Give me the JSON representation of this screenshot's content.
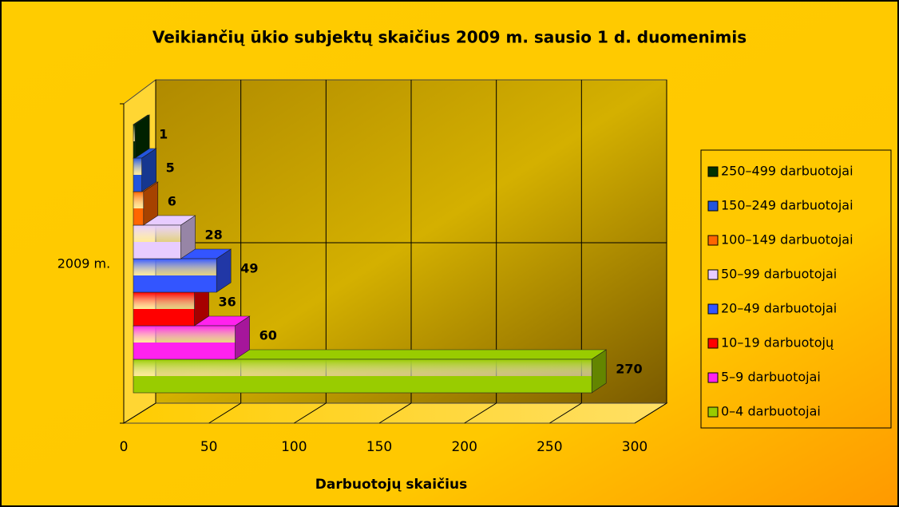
{
  "chart_data": {
    "type": "bar3d",
    "orientation": "horizontal",
    "title": "Veikiančių ūkio subjektų skaičius 2009 m. sausio 1 d. duomenimis",
    "x_label": "Darbuotojų skaičius",
    "categories": [
      "2009 m."
    ],
    "series": [
      {
        "name": "0–4 darbuotojai",
        "color": "#99cc00",
        "values": [
          270
        ]
      },
      {
        "name": "5–9 darbuotojai",
        "color": "#ff22ee",
        "values": [
          60
        ]
      },
      {
        "name": "10–19 darbuotojų",
        "color": "#ff0000",
        "values": [
          36
        ]
      },
      {
        "name": "20–49 darbuotojai",
        "color": "#3355ff",
        "values": [
          49
        ]
      },
      {
        "name": "50–99 darbuotojai",
        "color": "#e8ccff",
        "values": [
          28
        ]
      },
      {
        "name": "100–149 darbuotojai",
        "color": "#ff6600",
        "values": [
          6
        ]
      },
      {
        "name": "150–249 darbuotojai",
        "color": "#2255dd",
        "values": [
          5
        ]
      },
      {
        "name": "250–499 darbuotojai",
        "color": "#003300",
        "values": [
          1
        ]
      }
    ],
    "xlim": [
      0,
      300
    ],
    "xticks": [
      0,
      50,
      100,
      150,
      200,
      250,
      300
    ],
    "grid": true,
    "legend": "right"
  }
}
